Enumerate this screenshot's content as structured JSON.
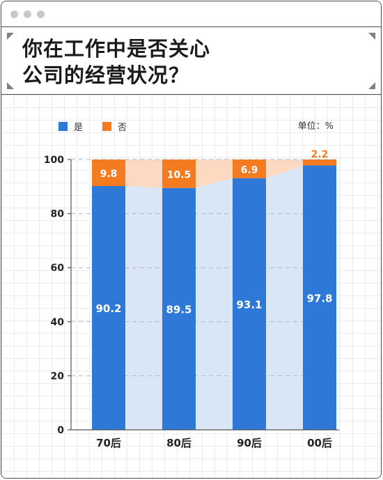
{
  "title_lines": [
    "你在工作中是否关心",
    "公司的经营状况？"
  ],
  "unit_label": "单位：%",
  "colors": {
    "yes": "#2e78d8",
    "no": "#f47b20",
    "yes_band": "#d9e6f5",
    "no_band": "#fcd9c0"
  },
  "chart_data": {
    "type": "bar",
    "stacked": true,
    "title": "你在工作中是否关心公司的经营状况？",
    "unit": "%",
    "categories": [
      "70后",
      "80后",
      "90后",
      "00后"
    ],
    "series": [
      {
        "name": "是",
        "values": [
          90.2,
          89.5,
          93.1,
          97.8
        ]
      },
      {
        "name": "否",
        "values": [
          9.8,
          10.5,
          6.9,
          2.2
        ]
      }
    ],
    "value_labels": {
      "是": [
        "90.2",
        "89.5",
        "93.1",
        "97.8"
      ],
      "否": [
        "9.8",
        "10.5",
        "6.9",
        "2.2"
      ]
    },
    "ylim": [
      0,
      100
    ],
    "yticks": [
      0,
      20,
      40,
      60,
      80,
      100
    ],
    "legend_position": "top-left",
    "grid": true
  }
}
